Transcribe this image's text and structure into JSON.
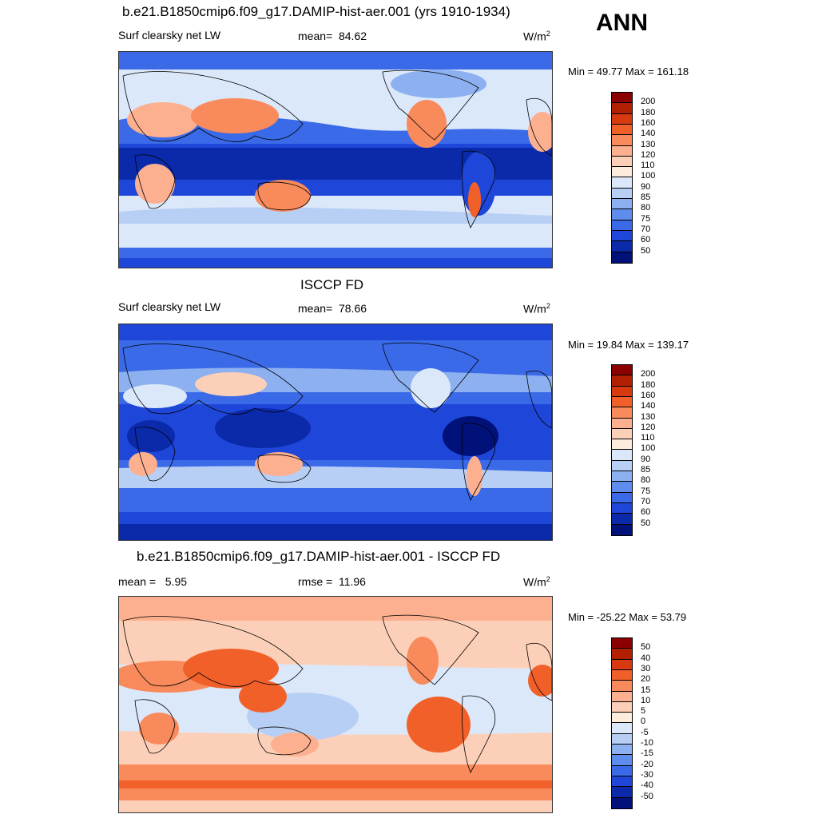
{
  "season": "ANN",
  "units_w": "W/m",
  "units_sup": "2",
  "panels": [
    {
      "title": "b.e21.B1850cmip6.f09_g17.DAMIP-hist-aer.001 (yrs 1910-1934)",
      "left_label": "Surf clearsky net LW",
      "stat_label": "mean=",
      "stat_value": "84.62",
      "minmax": "Min =  49.77 Max = 161.18",
      "levels": [
        "200",
        "180",
        "160",
        "140",
        "130",
        "120",
        "110",
        "100",
        "90",
        "85",
        "80",
        "75",
        "70",
        "60",
        "50"
      ],
      "colors": [
        "#8b0000",
        "#b22000",
        "#d63a0e",
        "#f2602a",
        "#f98a5c",
        "#fcb08f",
        "#fcd0b8",
        "#fdebdc",
        "#dbe8fa",
        "#b8cff5",
        "#8cb0f0",
        "#5f8ded",
        "#3a6ae8",
        "#1e46d8",
        "#0b2aaa",
        "#00127a"
      ]
    },
    {
      "title": "ISCCP FD",
      "left_label": "Surf clearsky net LW",
      "stat_label": "mean=",
      "stat_value": "78.66",
      "minmax": "Min =  19.84 Max = 139.17",
      "levels": [
        "200",
        "180",
        "160",
        "140",
        "130",
        "120",
        "110",
        "100",
        "90",
        "85",
        "80",
        "75",
        "70",
        "60",
        "50"
      ],
      "colors": [
        "#8b0000",
        "#b22000",
        "#d63a0e",
        "#f2602a",
        "#f98a5c",
        "#fcb08f",
        "#fcd0b8",
        "#fdebdc",
        "#dbe8fa",
        "#b8cff5",
        "#8cb0f0",
        "#5f8ded",
        "#3a6ae8",
        "#1e46d8",
        "#0b2aaa",
        "#00127a"
      ]
    },
    {
      "title": "b.e21.B1850cmip6.f09_g17.DAMIP-hist-aer.001 - ISCCP FD",
      "left_label": "mean =",
      "left_value": "5.95",
      "stat_label": "rmse =",
      "stat_value": "11.96",
      "minmax": "Min = -25.22 Max =  53.79",
      "levels": [
        "50",
        "40",
        "30",
        "20",
        "15",
        "10",
        "5",
        "0",
        "-5",
        "-10",
        "-15",
        "-20",
        "-30",
        "-40",
        "-50"
      ],
      "colors": [
        "#8b0000",
        "#b22000",
        "#d63a0e",
        "#f2602a",
        "#f98a5c",
        "#fcb08f",
        "#fcd0b8",
        "#fdebdc",
        "#dbe8fa",
        "#b8cff5",
        "#8cb0f0",
        "#5f8ded",
        "#3a6ae8",
        "#1e46d8",
        "#0b2aaa",
        "#00127a"
      ]
    }
  ],
  "chart_data": [
    {
      "type": "heatmap",
      "title": "b.e21.B1850cmip6.f09_g17.DAMIP-hist-aer.001 (yrs 1910-1934)",
      "variable": "Surf clearsky net LW",
      "units": "W/m2",
      "mean": 84.62,
      "min": 49.77,
      "max": 161.18,
      "contour_levels": [
        50,
        60,
        70,
        75,
        80,
        85,
        90,
        100,
        110,
        120,
        130,
        140,
        160,
        180,
        200
      ]
    },
    {
      "type": "heatmap",
      "title": "ISCCP FD",
      "variable": "Surf clearsky net LW",
      "units": "W/m2",
      "mean": 78.66,
      "min": 19.84,
      "max": 139.17,
      "contour_levels": [
        50,
        60,
        70,
        75,
        80,
        85,
        90,
        100,
        110,
        120,
        130,
        140,
        160,
        180,
        200
      ]
    },
    {
      "type": "heatmap",
      "title": "b.e21.B1850cmip6.f09_g17.DAMIP-hist-aer.001 - ISCCP FD",
      "units": "W/m2",
      "mean": 5.95,
      "rmse": 11.96,
      "min": -25.22,
      "max": 53.79,
      "contour_levels": [
        -50,
        -40,
        -30,
        -20,
        -15,
        -10,
        -5,
        0,
        5,
        10,
        15,
        20,
        30,
        40,
        50
      ]
    }
  ]
}
